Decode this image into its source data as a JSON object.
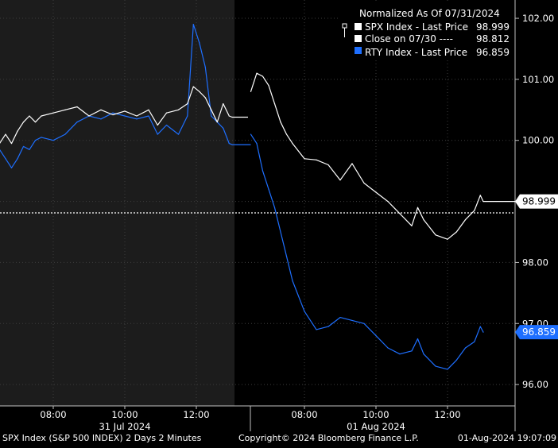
{
  "legend": {
    "title": "Normalized As Of 07/31/2024",
    "entries": [
      {
        "label": "SPX Index - Last Price",
        "value": "98.999",
        "color": "#ffffff",
        "style": "solid"
      },
      {
        "label": "Close on 07/30 ----",
        "value": "98.812",
        "color": "#ffffff",
        "style": "dotted"
      },
      {
        "label": "RTY Index - Last Price",
        "value": "96.859",
        "color": "#1e6fff",
        "style": "solid"
      }
    ]
  },
  "footer": {
    "left": "SPX Index (S&P 500 INDEX) 2 Days 2 Minutes",
    "center": "Copyright© 2024 Bloomberg Finance L.P.",
    "right": "01-Aug-2024 19:07:09"
  },
  "colors": {
    "background": "#000000",
    "session_shade": "#1c1c1c",
    "spx": "#ffffff",
    "rty": "#1e6fff",
    "callout_bg_spx": "#ffffff",
    "callout_bg_rty": "#1e6fff"
  },
  "chart_data": {
    "type": "line",
    "y_axis_side": "right",
    "ylim": [
      95.65,
      102.3
    ],
    "yticks": [
      {
        "value": 96.0,
        "label": "96.00"
      },
      {
        "value": 97.0,
        "label": "97.00"
      },
      {
        "value": 98.0,
        "label": "98.00"
      },
      {
        "value": 99.0,
        "label": "99.00"
      },
      {
        "value": 100.0,
        "label": "100.00"
      },
      {
        "value": 101.0,
        "label": "101.00"
      },
      {
        "value": 102.0,
        "label": "102.00"
      }
    ],
    "x_time_ticks": [
      {
        "day": 0,
        "time": "08:00"
      },
      {
        "day": 0,
        "time": "10:00"
      },
      {
        "day": 0,
        "time": "12:00"
      },
      {
        "day": 1,
        "time": "08:00"
      },
      {
        "day": 1,
        "time": "10:00"
      },
      {
        "day": 1,
        "time": "12:00"
      }
    ],
    "date_labels": [
      {
        "day": 0,
        "at": "10:00",
        "label": "31 Jul 2024"
      },
      {
        "day": 1,
        "at": "10:00",
        "label": "01 Aug 2024"
      }
    ],
    "sessions": [
      {
        "day": 0,
        "start": "06:30",
        "end": "13:00"
      },
      {
        "day": 1,
        "start": "06:30",
        "end": "13:00"
      }
    ],
    "reference_line": {
      "name": "Close on 07/30",
      "value": 98.812
    },
    "callouts": [
      {
        "series": "SPX Index",
        "value": 98.999,
        "label": "98.999"
      },
      {
        "series": "RTY Index",
        "value": 96.859,
        "label": "96.859"
      }
    ],
    "series": [
      {
        "name": "SPX Index - Last Price",
        "color": "#ffffff",
        "points": [
          {
            "day": 0,
            "t": "06:30",
            "y": 99.95
          },
          {
            "day": 0,
            "t": "06:40",
            "y": 100.1
          },
          {
            "day": 0,
            "t": "06:50",
            "y": 99.95
          },
          {
            "day": 0,
            "t": "07:00",
            "y": 100.15
          },
          {
            "day": 0,
            "t": "07:10",
            "y": 100.3
          },
          {
            "day": 0,
            "t": "07:20",
            "y": 100.4
          },
          {
            "day": 0,
            "t": "07:30",
            "y": 100.3
          },
          {
            "day": 0,
            "t": "07:40",
            "y": 100.4
          },
          {
            "day": 0,
            "t": "08:00",
            "y": 100.45
          },
          {
            "day": 0,
            "t": "08:20",
            "y": 100.5
          },
          {
            "day": 0,
            "t": "08:40",
            "y": 100.55
          },
          {
            "day": 0,
            "t": "09:00",
            "y": 100.4
          },
          {
            "day": 0,
            "t": "09:20",
            "y": 100.5
          },
          {
            "day": 0,
            "t": "09:40",
            "y": 100.42
          },
          {
            "day": 0,
            "t": "10:00",
            "y": 100.48
          },
          {
            "day": 0,
            "t": "10:20",
            "y": 100.4
          },
          {
            "day": 0,
            "t": "10:40",
            "y": 100.5
          },
          {
            "day": 0,
            "t": "10:55",
            "y": 100.25
          },
          {
            "day": 0,
            "t": "11:10",
            "y": 100.45
          },
          {
            "day": 0,
            "t": "11:30",
            "y": 100.5
          },
          {
            "day": 0,
            "t": "11:45",
            "y": 100.6
          },
          {
            "day": 0,
            "t": "11:55",
            "y": 100.88
          },
          {
            "day": 0,
            "t": "12:05",
            "y": 100.8
          },
          {
            "day": 0,
            "t": "12:15",
            "y": 100.7
          },
          {
            "day": 0,
            "t": "12:25",
            "y": 100.5
          },
          {
            "day": 0,
            "t": "12:35",
            "y": 100.3
          },
          {
            "day": 0,
            "t": "12:45",
            "y": 100.6
          },
          {
            "day": 0,
            "t": "12:55",
            "y": 100.4
          },
          {
            "day": 0,
            "t": "13:00",
            "y": 100.38
          },
          {
            "day": 1,
            "t": "06:30",
            "y": 100.8
          },
          {
            "day": 1,
            "t": "06:40",
            "y": 101.1
          },
          {
            "day": 1,
            "t": "06:50",
            "y": 101.05
          },
          {
            "day": 1,
            "t": "07:00",
            "y": 100.9
          },
          {
            "day": 1,
            "t": "07:10",
            "y": 100.6
          },
          {
            "day": 1,
            "t": "07:20",
            "y": 100.3
          },
          {
            "day": 1,
            "t": "07:30",
            "y": 100.1
          },
          {
            "day": 1,
            "t": "07:40",
            "y": 99.95
          },
          {
            "day": 1,
            "t": "08:00",
            "y": 99.7
          },
          {
            "day": 1,
            "t": "08:20",
            "y": 99.68
          },
          {
            "day": 1,
            "t": "08:40",
            "y": 99.6
          },
          {
            "day": 1,
            "t": "09:00",
            "y": 99.35
          },
          {
            "day": 1,
            "t": "09:20",
            "y": 99.62
          },
          {
            "day": 1,
            "t": "09:40",
            "y": 99.3
          },
          {
            "day": 1,
            "t": "10:00",
            "y": 99.15
          },
          {
            "day": 1,
            "t": "10:20",
            "y": 99.0
          },
          {
            "day": 1,
            "t": "10:40",
            "y": 98.8
          },
          {
            "day": 1,
            "t": "11:00",
            "y": 98.6
          },
          {
            "day": 1,
            "t": "11:10",
            "y": 98.9
          },
          {
            "day": 1,
            "t": "11:20",
            "y": 98.7
          },
          {
            "day": 1,
            "t": "11:40",
            "y": 98.45
          },
          {
            "day": 1,
            "t": "12:00",
            "y": 98.38
          },
          {
            "day": 1,
            "t": "12:15",
            "y": 98.5
          },
          {
            "day": 1,
            "t": "12:30",
            "y": 98.7
          },
          {
            "day": 1,
            "t": "12:45",
            "y": 98.85
          },
          {
            "day": 1,
            "t": "12:55",
            "y": 99.1
          },
          {
            "day": 1,
            "t": "13:00",
            "y": 98.999
          }
        ]
      },
      {
        "name": "RTY Index - Last Price",
        "color": "#1e6fff",
        "points": [
          {
            "day": 0,
            "t": "06:30",
            "y": 99.85
          },
          {
            "day": 0,
            "t": "06:40",
            "y": 99.7
          },
          {
            "day": 0,
            "t": "06:50",
            "y": 99.55
          },
          {
            "day": 0,
            "t": "07:00",
            "y": 99.7
          },
          {
            "day": 0,
            "t": "07:10",
            "y": 99.9
          },
          {
            "day": 0,
            "t": "07:20",
            "y": 99.85
          },
          {
            "day": 0,
            "t": "07:30",
            "y": 100.0
          },
          {
            "day": 0,
            "t": "07:40",
            "y": 100.05
          },
          {
            "day": 0,
            "t": "08:00",
            "y": 100.0
          },
          {
            "day": 0,
            "t": "08:20",
            "y": 100.1
          },
          {
            "day": 0,
            "t": "08:40",
            "y": 100.3
          },
          {
            "day": 0,
            "t": "09:00",
            "y": 100.4
          },
          {
            "day": 0,
            "t": "09:20",
            "y": 100.35
          },
          {
            "day": 0,
            "t": "09:40",
            "y": 100.45
          },
          {
            "day": 0,
            "t": "10:00",
            "y": 100.4
          },
          {
            "day": 0,
            "t": "10:20",
            "y": 100.35
          },
          {
            "day": 0,
            "t": "10:40",
            "y": 100.4
          },
          {
            "day": 0,
            "t": "10:55",
            "y": 100.1
          },
          {
            "day": 0,
            "t": "11:10",
            "y": 100.25
          },
          {
            "day": 0,
            "t": "11:30",
            "y": 100.1
          },
          {
            "day": 0,
            "t": "11:45",
            "y": 100.4
          },
          {
            "day": 0,
            "t": "11:55",
            "y": 101.9
          },
          {
            "day": 0,
            "t": "12:05",
            "y": 101.6
          },
          {
            "day": 0,
            "t": "12:15",
            "y": 101.2
          },
          {
            "day": 0,
            "t": "12:25",
            "y": 100.4
          },
          {
            "day": 0,
            "t": "12:35",
            "y": 100.3
          },
          {
            "day": 0,
            "t": "12:45",
            "y": 100.2
          },
          {
            "day": 0,
            "t": "12:55",
            "y": 99.95
          },
          {
            "day": 0,
            "t": "13:00",
            "y": 99.93
          },
          {
            "day": 1,
            "t": "06:30",
            "y": 100.1
          },
          {
            "day": 1,
            "t": "06:40",
            "y": 99.95
          },
          {
            "day": 1,
            "t": "06:50",
            "y": 99.5
          },
          {
            "day": 1,
            "t": "07:00",
            "y": 99.2
          },
          {
            "day": 1,
            "t": "07:10",
            "y": 98.9
          },
          {
            "day": 1,
            "t": "07:20",
            "y": 98.5
          },
          {
            "day": 1,
            "t": "07:30",
            "y": 98.1
          },
          {
            "day": 1,
            "t": "07:40",
            "y": 97.7
          },
          {
            "day": 1,
            "t": "08:00",
            "y": 97.2
          },
          {
            "day": 1,
            "t": "08:20",
            "y": 96.9
          },
          {
            "day": 1,
            "t": "08:40",
            "y": 96.95
          },
          {
            "day": 1,
            "t": "09:00",
            "y": 97.1
          },
          {
            "day": 1,
            "t": "09:20",
            "y": 97.05
          },
          {
            "day": 1,
            "t": "09:40",
            "y": 97.0
          },
          {
            "day": 1,
            "t": "10:00",
            "y": 96.8
          },
          {
            "day": 1,
            "t": "10:20",
            "y": 96.6
          },
          {
            "day": 1,
            "t": "10:40",
            "y": 96.5
          },
          {
            "day": 1,
            "t": "11:00",
            "y": 96.55
          },
          {
            "day": 1,
            "t": "11:10",
            "y": 96.75
          },
          {
            "day": 1,
            "t": "11:20",
            "y": 96.5
          },
          {
            "day": 1,
            "t": "11:40",
            "y": 96.3
          },
          {
            "day": 1,
            "t": "12:00",
            "y": 96.25
          },
          {
            "day": 1,
            "t": "12:15",
            "y": 96.4
          },
          {
            "day": 1,
            "t": "12:30",
            "y": 96.6
          },
          {
            "day": 1,
            "t": "12:45",
            "y": 96.7
          },
          {
            "day": 1,
            "t": "12:55",
            "y": 96.95
          },
          {
            "day": 1,
            "t": "13:00",
            "y": 96.859
          }
        ]
      }
    ]
  }
}
